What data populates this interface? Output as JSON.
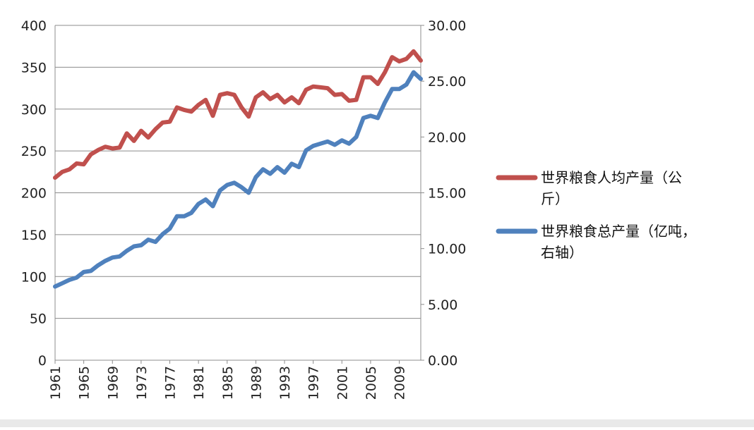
{
  "chart_data": {
    "type": "line",
    "title": "",
    "xlabel": "",
    "y_left": {
      "label": "",
      "range": [
        0,
        400
      ],
      "ticks": [
        "0",
        "50",
        "100",
        "150",
        "200",
        "250",
        "300",
        "350",
        "400"
      ]
    },
    "y_right": {
      "label": "",
      "range": [
        0,
        30
      ],
      "ticks": [
        "0.00",
        "5.00",
        "10.00",
        "15.00",
        "20.00",
        "25.00",
        "30.00"
      ]
    },
    "x_ticks": [
      "1961",
      "1965",
      "1969",
      "1973",
      "1977",
      "1981",
      "1985",
      "1989",
      "1993",
      "1997",
      "2001",
      "2005",
      "2009"
    ],
    "x": [
      1961,
      1962,
      1963,
      1964,
      1965,
      1966,
      1967,
      1968,
      1969,
      1970,
      1971,
      1972,
      1973,
      1974,
      1975,
      1976,
      1977,
      1978,
      1979,
      1980,
      1981,
      1982,
      1983,
      1984,
      1985,
      1986,
      1987,
      1988,
      1989,
      1990,
      1991,
      1992,
      1993,
      1994,
      1995,
      1996,
      1997,
      1998,
      1999,
      2000,
      2001,
      2002,
      2003,
      2004,
      2005,
      2006,
      2007,
      2008,
      2009,
      2010,
      2011,
      2012
    ],
    "grid": true,
    "legend_position": "right",
    "series": [
      {
        "name": "世界粮食人均产量（公斤）",
        "axis": "left",
        "color": "#c0504d",
        "values": [
          218,
          225,
          228,
          235,
          234,
          246,
          251,
          255,
          253,
          254,
          271,
          262,
          274,
          266,
          276,
          284,
          285,
          302,
          299,
          297,
          305,
          311,
          292,
          317,
          319,
          317,
          302,
          291,
          314,
          320,
          312,
          317,
          308,
          314,
          307,
          323,
          327,
          326,
          325,
          317,
          318,
          310,
          311,
          338,
          338,
          330,
          344,
          362,
          357,
          360,
          369,
          358
        ]
      },
      {
        "name": "世界粮食总产量（亿吨，右轴）",
        "axis": "right",
        "color": "#4f81bd",
        "values": [
          6.6,
          6.9,
          7.2,
          7.4,
          7.9,
          8.0,
          8.5,
          8.9,
          9.2,
          9.3,
          9.8,
          10.2,
          10.3,
          10.8,
          10.6,
          11.3,
          11.8,
          12.9,
          12.9,
          13.2,
          14.0,
          14.4,
          13.8,
          15.2,
          15.7,
          15.9,
          15.5,
          15.0,
          16.4,
          17.1,
          16.7,
          17.3,
          16.8,
          17.6,
          17.3,
          18.8,
          19.2,
          19.4,
          19.6,
          19.3,
          19.7,
          19.4,
          20.0,
          21.7,
          21.9,
          21.7,
          23.1,
          24.3,
          24.3,
          24.7,
          25.8,
          25.2
        ]
      }
    ]
  },
  "legend": {
    "items": [
      {
        "line1": "世界粮食人均产量（公",
        "line2": "斤）",
        "color": "#c0504d"
      },
      {
        "line1": "世界粮食总产量（亿吨，",
        "line2": "右轴）",
        "color": "#4f81bd"
      }
    ]
  }
}
